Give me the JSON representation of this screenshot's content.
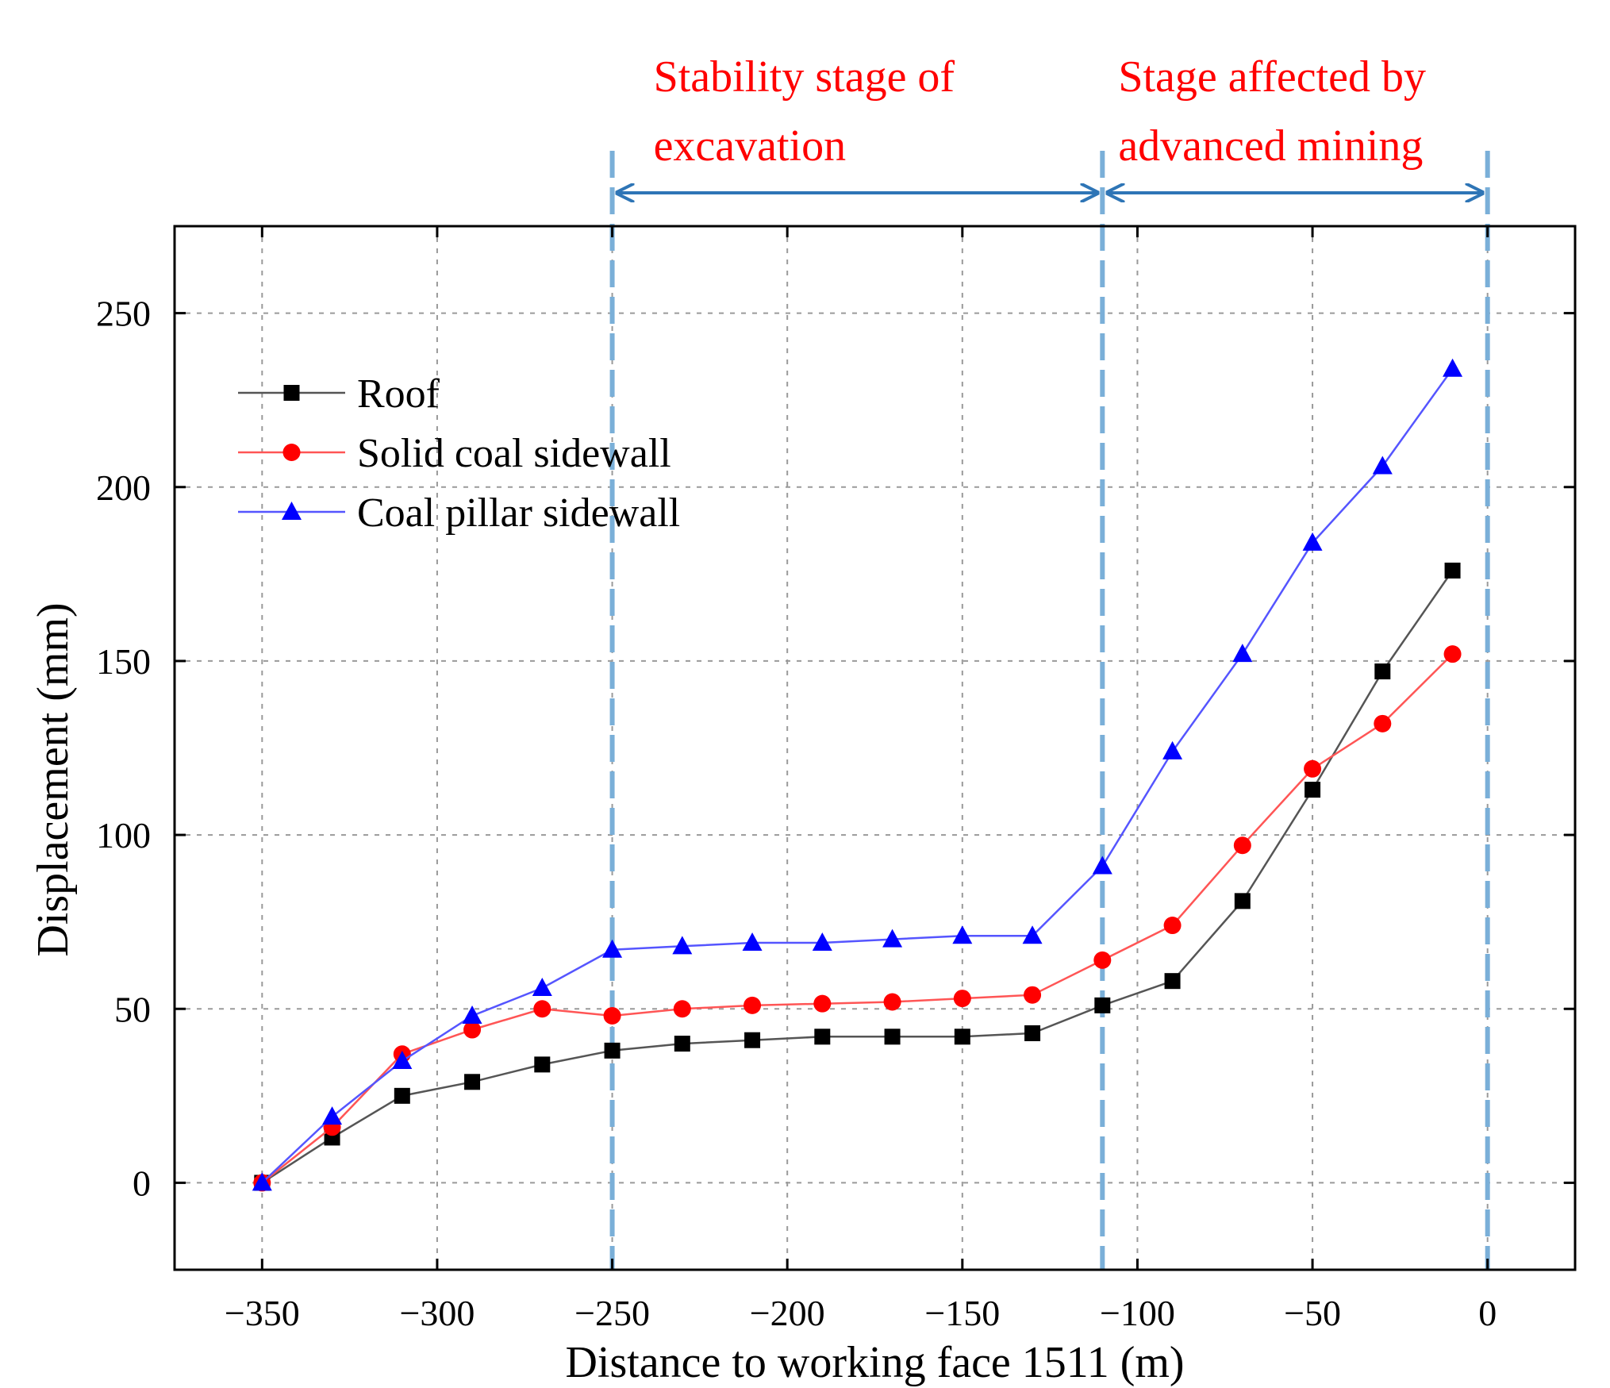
{
  "chart_data": {
    "type": "line",
    "xlabel": "Distance to working face 1511 (m)",
    "ylabel": "Displacement (mm)",
    "xlim": [
      -375,
      25
    ],
    "ylim": [
      -25,
      275
    ],
    "xticks": [
      -350,
      -300,
      -250,
      -200,
      -150,
      -100,
      -50,
      0
    ],
    "xtick_labels": [
      "−350",
      "−300",
      "−250",
      "−200",
      "−150",
      "−100",
      "−50",
      "0"
    ],
    "yticks": [
      0,
      50,
      100,
      150,
      200,
      250
    ],
    "ytick_labels": [
      "0",
      "50",
      "100",
      "150",
      "200",
      "250"
    ],
    "grid": true,
    "legend_position": "top-left",
    "x": [
      -350,
      -330,
      -310,
      -290,
      -270,
      -250,
      -230,
      -210,
      -190,
      -170,
      -150,
      -130,
      -110,
      -90,
      -70,
      -50,
      -30,
      -10
    ],
    "series": [
      {
        "name": "Roof",
        "color": "#000000",
        "line_color": "#555555",
        "marker": "square",
        "values": [
          0,
          13,
          25,
          29,
          34,
          38,
          40,
          41,
          42,
          42,
          42,
          43,
          51,
          58,
          81,
          113,
          147,
          176
        ]
      },
      {
        "name": "Solid coal sidewall",
        "color": "#ff0000",
        "line_color": "#ff5555",
        "marker": "circle",
        "values": [
          0,
          16,
          37,
          44,
          50,
          48,
          50,
          51,
          51.5,
          52,
          53,
          54,
          64,
          74,
          97,
          119,
          132,
          152
        ]
      },
      {
        "name": "Coal pillar sidewall",
        "color": "#0000ff",
        "line_color": "#5555ff",
        "marker": "triangle",
        "values": [
          0,
          19,
          35,
          48,
          56,
          67,
          68,
          69,
          69,
          70,
          71,
          71,
          91,
          124,
          152,
          184,
          206,
          234
        ]
      }
    ],
    "stage_lines_x": [
      -250,
      -110,
      0
    ],
    "stages": [
      {
        "label_line1": "Stability stage  of",
        "label_line2": "excavation",
        "from_x": -250,
        "to_x": -110
      },
      {
        "label_line1": "Stage affected by",
        "label_line2": "advanced mining",
        "from_x": -110,
        "to_x": 0
      }
    ],
    "annotation_color": "#ff0000",
    "stage_line_color": "#7aafd8",
    "arrow_color": "#2e75b6"
  }
}
